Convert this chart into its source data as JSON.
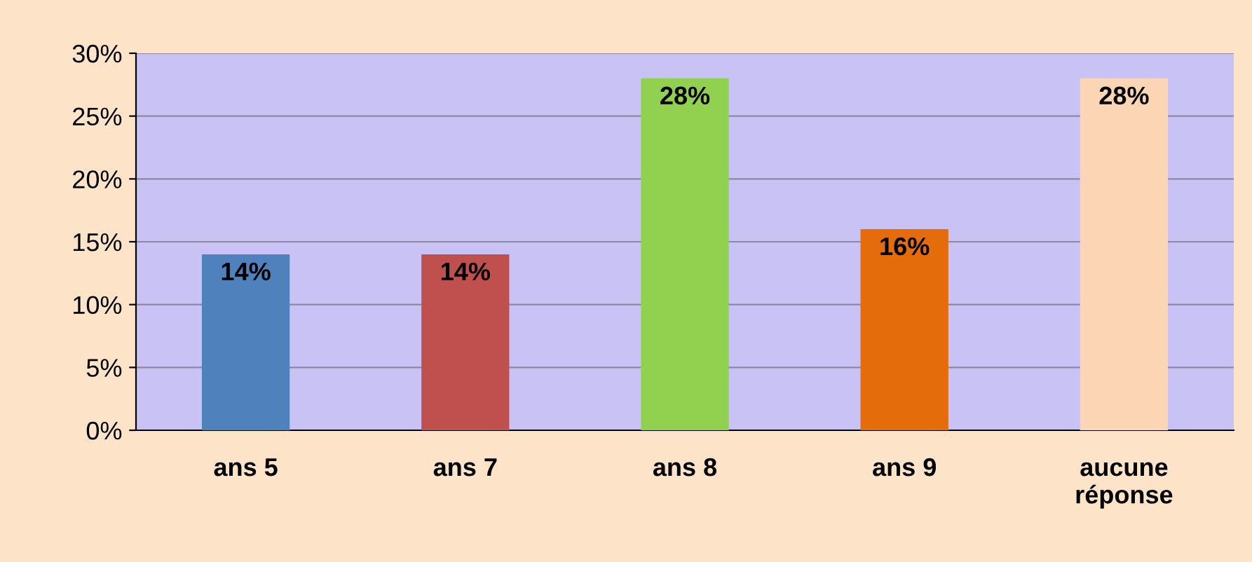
{
  "chart_data": {
    "type": "bar",
    "categories": [
      "ans 5",
      "ans 7",
      "ans 8",
      "ans 9",
      "aucune\nréponse"
    ],
    "values": [
      14,
      14,
      28,
      16,
      28
    ],
    "colors": [
      "#4f81bd",
      "#c0504d",
      "#92d050",
      "#e46c0a",
      "#fcd5b5"
    ],
    "value_labels": [
      "14%",
      "14%",
      "28%",
      "16%",
      "28%"
    ],
    "ylim": [
      0,
      30
    ],
    "yticks": [
      {
        "value": 0,
        "label": "0%"
      },
      {
        "value": 5,
        "label": "5%"
      },
      {
        "value": 10,
        "label": "10%"
      },
      {
        "value": 15,
        "label": "15%"
      },
      {
        "value": 20,
        "label": "20%"
      },
      {
        "value": 25,
        "label": "25%"
      },
      {
        "value": 30,
        "label": "30%"
      }
    ],
    "grid": "y"
  }
}
